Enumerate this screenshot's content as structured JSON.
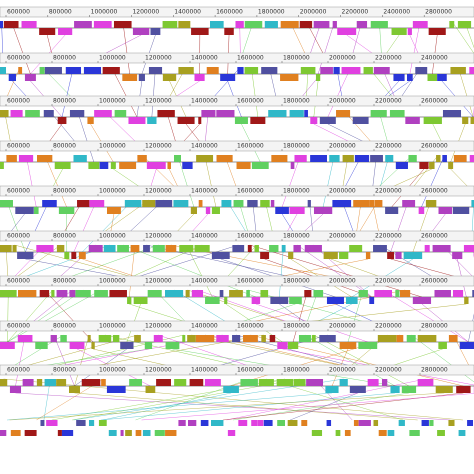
{
  "tracks": [
    {
      "ruler": [
        "600000",
        "800000",
        "1000000",
        "1200000",
        "1400000",
        "1600000",
        "1800000",
        "2000000",
        "2200000",
        "2400000",
        "2800000"
      ]
    },
    {
      "ruler": [
        "600000",
        "800000",
        "1000000",
        "1200000",
        "1400000",
        "1600000",
        "1800000",
        "2000000",
        "2200000",
        "2400000"
      ]
    },
    {
      "ruler": [
        "600000",
        "800000",
        "1000000",
        "1200000",
        "1400000",
        "1600000",
        "1800000",
        "2000000",
        "2200000",
        "2600000"
      ]
    },
    {
      "ruler": [
        "600000",
        "800000",
        "1000000",
        "1200000",
        "1400000",
        "1600000",
        "1800000",
        "2000000",
        "2200000",
        "2600000"
      ]
    },
    {
      "ruler": [
        "600000",
        "800000",
        "1000000",
        "1200000",
        "1400000",
        "1600000",
        "1800000",
        "2000000",
        "2200000",
        "2600000"
      ]
    },
    {
      "ruler": [
        "600000",
        "800000",
        "1000000",
        "1200000",
        "1400000",
        "1600000",
        "1800000",
        "2000000",
        "2200000",
        "2600000"
      ]
    },
    {
      "ruler": [
        "600000",
        "800000",
        "1000000",
        "1200000",
        "1400000",
        "1600000",
        "1800000",
        "2000000",
        "2200000",
        "2600000"
      ]
    },
    {
      "ruler": [
        "600000",
        "800000",
        "1000000",
        "1200000",
        "1400000",
        "1600000",
        "1800000",
        "2000000",
        "2200000",
        "2800000"
      ]
    },
    {
      "ruler": [
        "600000",
        "800000",
        "1000000",
        "1200000",
        "1400000",
        "1600000",
        "1800000",
        "2000000",
        "2200000",
        "2800000"
      ]
    }
  ]
}
